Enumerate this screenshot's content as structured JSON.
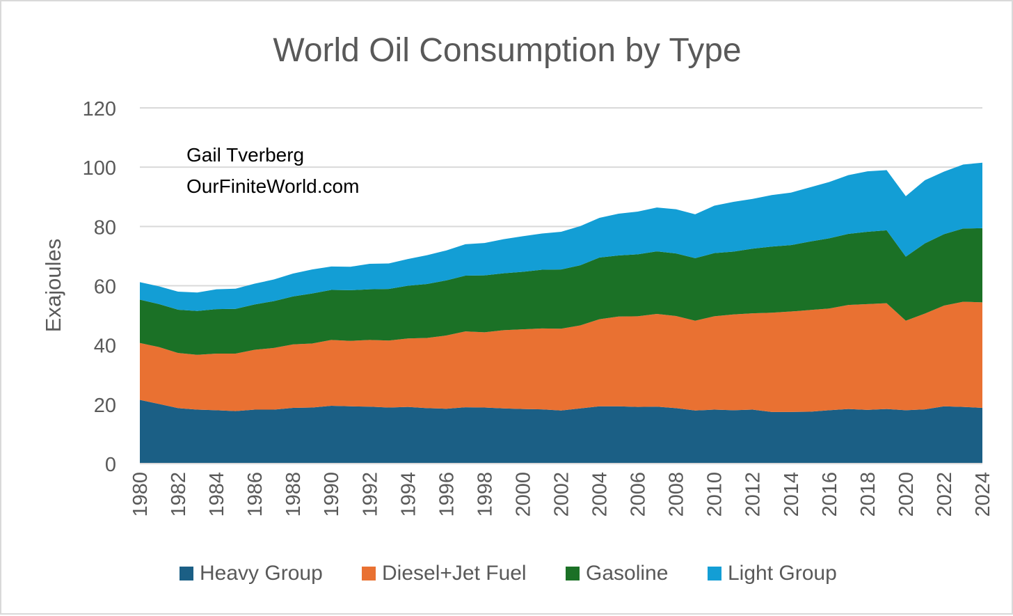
{
  "chart_data": {
    "type": "area",
    "stacked": true,
    "title": "World Oil Consumption by Type",
    "xlabel": "",
    "ylabel": "Exajoules",
    "ylim": [
      0,
      120
    ],
    "yticks": [
      0,
      20,
      40,
      60,
      80,
      100,
      120
    ],
    "grid": true,
    "legend_position": "bottom",
    "annotations": [
      "Gail Tverberg",
      "OurFiniteWorld.com"
    ],
    "x": [
      1980,
      1981,
      1982,
      1983,
      1984,
      1985,
      1986,
      1987,
      1988,
      1989,
      1990,
      1991,
      1992,
      1993,
      1994,
      1995,
      1996,
      1997,
      1998,
      1999,
      2000,
      2001,
      2002,
      2003,
      2004,
      2005,
      2006,
      2007,
      2008,
      2009,
      2010,
      2011,
      2012,
      2013,
      2014,
      2015,
      2016,
      2017,
      2018,
      2019,
      2020,
      2021,
      2022,
      2023,
      2024
    ],
    "xticks": [
      1980,
      1982,
      1984,
      1986,
      1988,
      1990,
      1992,
      1994,
      1996,
      1998,
      2000,
      2002,
      2004,
      2006,
      2008,
      2010,
      2012,
      2014,
      2016,
      2018,
      2020,
      2022,
      2024
    ],
    "series": [
      {
        "name": "Heavy Group",
        "color": "#1b5f85",
        "values": [
          21.5,
          20.1,
          18.7,
          18.2,
          18.0,
          17.7,
          18.2,
          18.2,
          18.8,
          18.9,
          19.5,
          19.3,
          19.2,
          18.9,
          19.1,
          18.7,
          18.5,
          19.0,
          18.9,
          18.6,
          18.4,
          18.3,
          17.9,
          18.6,
          19.3,
          19.3,
          19.1,
          19.2,
          18.7,
          17.9,
          18.2,
          18.0,
          18.2,
          17.4,
          17.4,
          17.5,
          18.0,
          18.4,
          18.1,
          18.4,
          18.0,
          18.3,
          19.3,
          19.1,
          18.8
        ]
      },
      {
        "name": "Diesel+Jet Fuel",
        "color": "#e97132",
        "values": [
          19.2,
          19.2,
          18.6,
          18.5,
          19.1,
          19.4,
          20.2,
          20.8,
          21.4,
          21.6,
          22.2,
          22.1,
          22.5,
          22.6,
          23.1,
          23.7,
          24.7,
          25.6,
          25.4,
          26.4,
          26.9,
          27.3,
          27.6,
          28.0,
          29.4,
          30.3,
          30.6,
          31.3,
          31.1,
          30.3,
          31.5,
          32.3,
          32.5,
          33.5,
          33.9,
          34.3,
          34.3,
          35.1,
          35.7,
          35.7,
          30.2,
          32.3,
          34.0,
          35.5,
          35.6
        ]
      },
      {
        "name": "Gasoline",
        "color": "#1b7126",
        "values": [
          14.6,
          14.5,
          14.6,
          14.8,
          15.0,
          15.1,
          15.3,
          15.8,
          16.2,
          16.9,
          16.9,
          17.1,
          17.1,
          17.4,
          17.8,
          18.2,
          18.6,
          18.8,
          19.2,
          19.2,
          19.4,
          19.8,
          20.0,
          20.3,
          20.8,
          20.6,
          20.9,
          21.1,
          21.1,
          21.1,
          21.3,
          21.2,
          21.8,
          22.3,
          22.4,
          23.1,
          23.7,
          24.0,
          24.4,
          24.6,
          21.6,
          23.7,
          24.1,
          24.7,
          25.0
        ]
      },
      {
        "name": "Light Group",
        "color": "#139ed5",
        "values": [
          5.9,
          6.0,
          6.1,
          6.2,
          6.7,
          6.8,
          7.0,
          7.3,
          7.7,
          8.1,
          7.9,
          7.9,
          8.6,
          8.6,
          9.0,
          9.7,
          10.1,
          10.6,
          10.9,
          11.5,
          12.0,
          12.2,
          12.7,
          13.2,
          13.4,
          14.1,
          14.4,
          14.8,
          14.9,
          14.8,
          16.0,
          16.8,
          16.8,
          17.4,
          17.7,
          18.3,
          19.0,
          19.8,
          20.4,
          20.3,
          20.4,
          21.3,
          21.1,
          21.6,
          22.1
        ]
      }
    ]
  }
}
